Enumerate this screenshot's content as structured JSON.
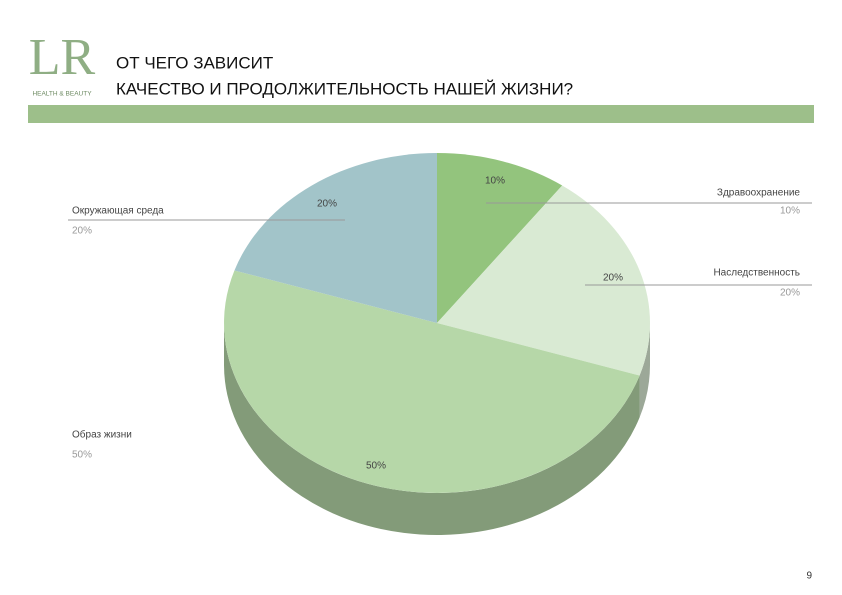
{
  "header": {
    "logo": "LR",
    "logo_sub": "HEALTH & BEAUTY",
    "title_lines": [
      "ОТ ЧЕГО ЗАВИСИТ",
      "КАЧЕСТВО И ПРОДОЛЖИТЕЛЬНОСТЬ НАШЕЙ ЖИЗНИ?"
    ]
  },
  "page_number": "9",
  "chart_data": {
    "type": "pie",
    "categories": [
      "Здравоохранение",
      "Наследственность",
      "Образ жизни",
      "Окружающая среда"
    ],
    "values": [
      10,
      20,
      50,
      20
    ],
    "value_labels": [
      "10%",
      "20%",
      "50%",
      "20%"
    ],
    "colors": [
      "#93c47d",
      "#d9ead3",
      "#b6d7a8",
      "#a2c4c9"
    ]
  }
}
